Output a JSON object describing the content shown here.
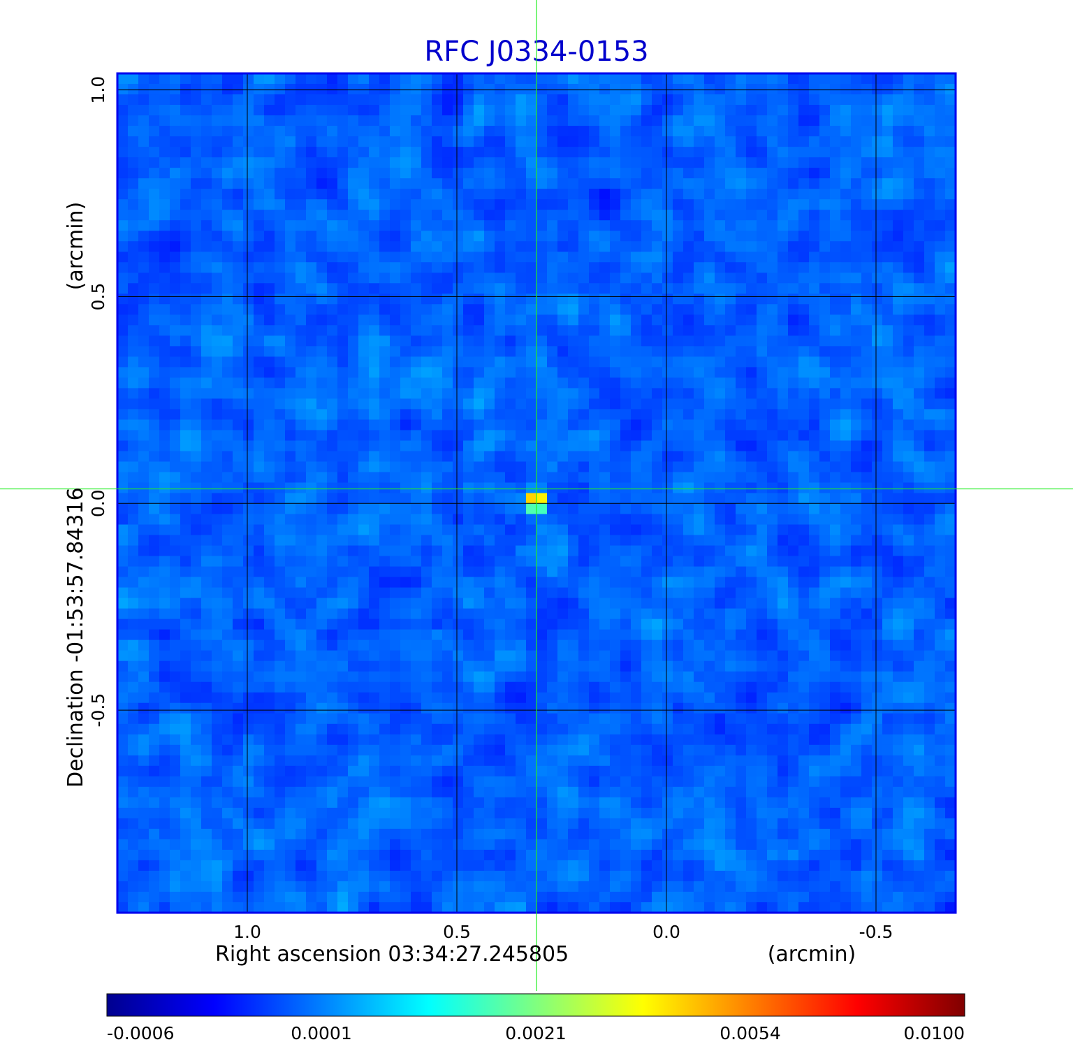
{
  "chart_data": {
    "type": "heatmap",
    "title": "RFC J0334-0153",
    "xlabel": "Right ascension  03:34:27.245805",
    "xunit": "(arcmin)",
    "ylabel": "Declination  -01:53:57.84316",
    "yunit": "(arcmin)",
    "xlim": [
      1.31,
      -0.69
    ],
    "ylim": [
      -0.99,
      1.04
    ],
    "x_ticks": [
      1.0,
      0.5,
      0.0,
      -0.5
    ],
    "x_tick_labels": [
      "1.0",
      "0.5",
      "0.0",
      "-0.5"
    ],
    "y_ticks": [
      1.0,
      0.5,
      0.0,
      -0.5
    ],
    "y_tick_labels": [
      "1.0",
      "0.5",
      "0.0",
      "-0.5"
    ],
    "grid": true,
    "crosshair": {
      "x": 0.31,
      "y": 0.035
    },
    "source": {
      "x": 0.31,
      "y": 0.005,
      "peak": 0.01
    },
    "colorbar": {
      "labels": [
        "-0.0006",
        "0.0001",
        "0.0021",
        "0.0054",
        "0.0100"
      ],
      "min": -0.0006,
      "max": 0.01,
      "colormap": "jet"
    },
    "colors": {
      "title": "#0000cc",
      "frame": "#0000ee",
      "grid": "#000000",
      "crosshair": "#22ee22"
    }
  }
}
